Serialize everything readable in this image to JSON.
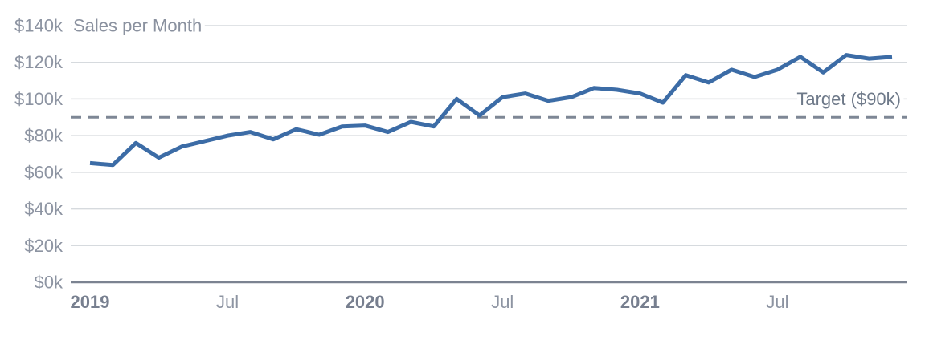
{
  "chart_data": {
    "type": "line",
    "title": "Sales per Month",
    "categories": [
      "Jan 2019",
      "Feb 2019",
      "Mar 2019",
      "Apr 2019",
      "May 2019",
      "Jun 2019",
      "Jul 2019",
      "Aug 2019",
      "Sep 2019",
      "Oct 2019",
      "Nov 2019",
      "Dec 2019",
      "Jan 2020",
      "Feb 2020",
      "Mar 2020",
      "Apr 2020",
      "May 2020",
      "Jun 2020",
      "Jul 2020",
      "Aug 2020",
      "Sep 2020",
      "Oct 2020",
      "Nov 2020",
      "Dec 2020",
      "Jan 2021",
      "Feb 2021",
      "Mar 2021",
      "Apr 2021",
      "May 2021",
      "Jun 2021",
      "Jul 2021",
      "Aug 2021",
      "Sep 2021",
      "Oct 2021",
      "Nov 2021",
      "Dec 2021"
    ],
    "series": [
      {
        "name": "Sales ($k)",
        "values": [
          65,
          64,
          76,
          68,
          74,
          77,
          80,
          82,
          78,
          83.5,
          80.5,
          85,
          85.5,
          82,
          87.5,
          85,
          100,
          91,
          101,
          103,
          99,
          101,
          106,
          105,
          103,
          98,
          113,
          109,
          116,
          112,
          116,
          123,
          114.5,
          124,
          122,
          123
        ]
      }
    ],
    "target": {
      "label": "Target ($90k)",
      "value": 90,
      "label_anchor_value": 100
    },
    "y_ticks": [
      {
        "label": "$0k",
        "value": 0
      },
      {
        "label": "$20k",
        "value": 20
      },
      {
        "label": "$40k",
        "value": 40
      },
      {
        "label": "$60k",
        "value": 60
      },
      {
        "label": "$80k",
        "value": 80
      },
      {
        "label": "$100k",
        "value": 100
      },
      {
        "label": "$120k",
        "value": 120
      },
      {
        "label": "$140k",
        "value": 140
      }
    ],
    "x_ticks": [
      {
        "label": "2019",
        "month_index": 0,
        "bold": true
      },
      {
        "label": "Jul",
        "month_index": 6,
        "bold": false
      },
      {
        "label": "2020",
        "month_index": 12,
        "bold": true
      },
      {
        "label": "Jul",
        "month_index": 18,
        "bold": false
      },
      {
        "label": "2021",
        "month_index": 24,
        "bold": true
      },
      {
        "label": "Jul",
        "month_index": 30,
        "bold": false
      }
    ],
    "ylim": [
      0,
      140
    ],
    "xlabel": "",
    "ylabel": "",
    "grid": true,
    "legend_position": "none",
    "colors": {
      "line": "#3c6ca6",
      "target_line": "#7e8795",
      "grid": "#d6dade",
      "axis": "#7b8391",
      "tick_label": "#8d94a2",
      "tick_label_strong": "#777f8f",
      "title_text": "#8a919f",
      "target_text": "#6e7989",
      "background": "#ffffff"
    }
  }
}
